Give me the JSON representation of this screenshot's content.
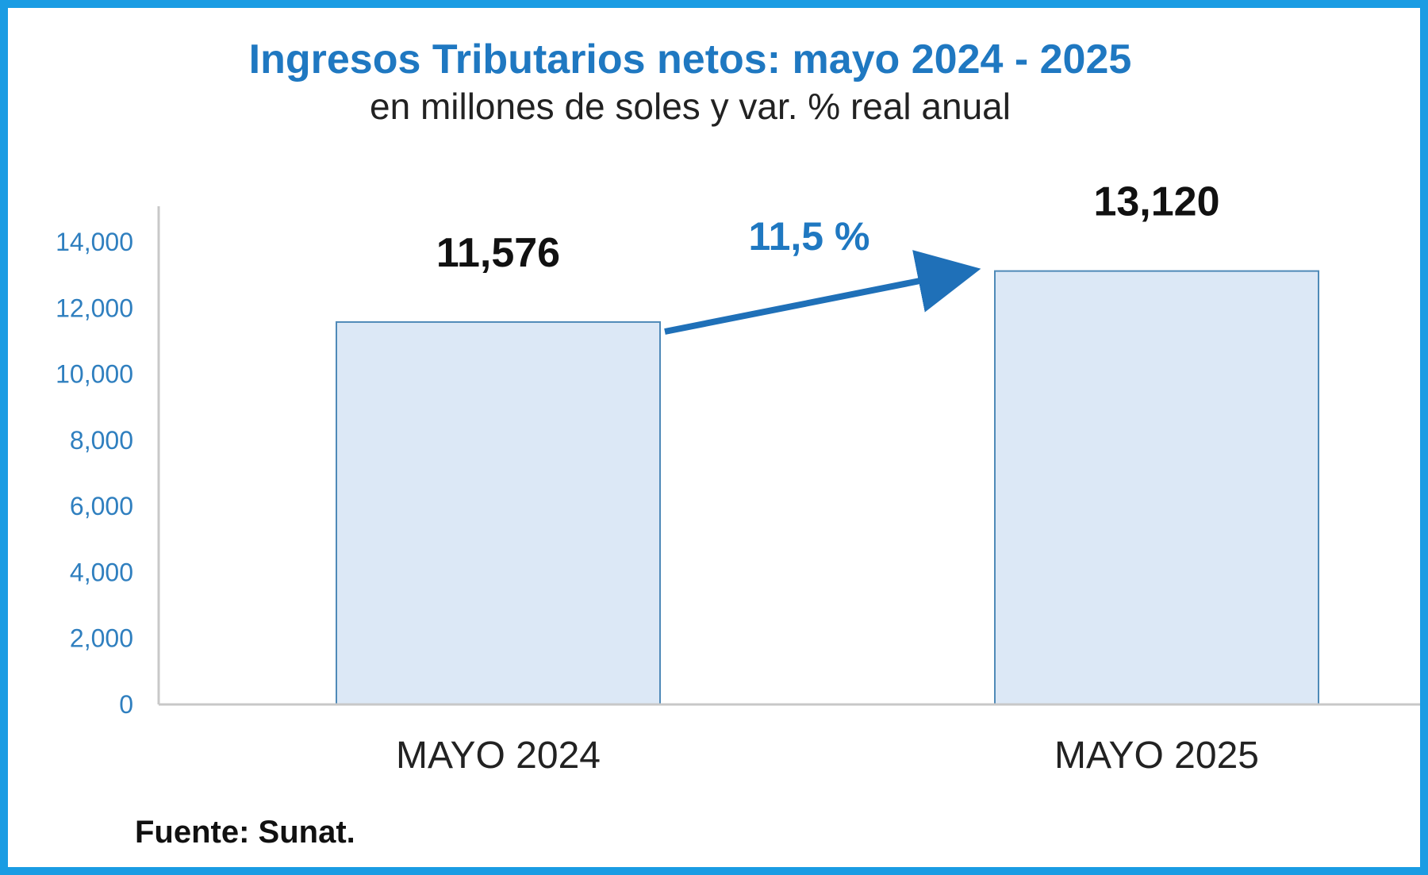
{
  "chart_data": {
    "type": "bar",
    "title": "Ingresos Tributarios netos: mayo 2024 - 2025",
    "subtitle": "en millones de soles y var. % real anual",
    "categories": [
      "MAYO 2024",
      "MAYO 2025"
    ],
    "values": [
      11576,
      13120
    ],
    "value_labels": [
      "11,576",
      "13,120"
    ],
    "yticks": [
      0,
      2000,
      4000,
      6000,
      8000,
      10000,
      12000,
      14000
    ],
    "ytick_labels": [
      "0",
      "2,000",
      "4,000",
      "6,000",
      "8,000",
      "10,000",
      "12,000",
      "14,000"
    ],
    "ylim": [
      0,
      15000
    ],
    "xlabel": "",
    "ylabel": "",
    "grid": false,
    "legend": "none",
    "annotation": "11,5 %",
    "source": "Fuente: Sunat.",
    "colors": {
      "border": "#1a9ce3",
      "title": "#1f78c1",
      "bar_fill": "#dce8f6",
      "bar_stroke": "#4f8ab8",
      "arrow": "#1f70b8",
      "axis": "#c8c8c8",
      "ytick": "#2f7fbf"
    }
  }
}
